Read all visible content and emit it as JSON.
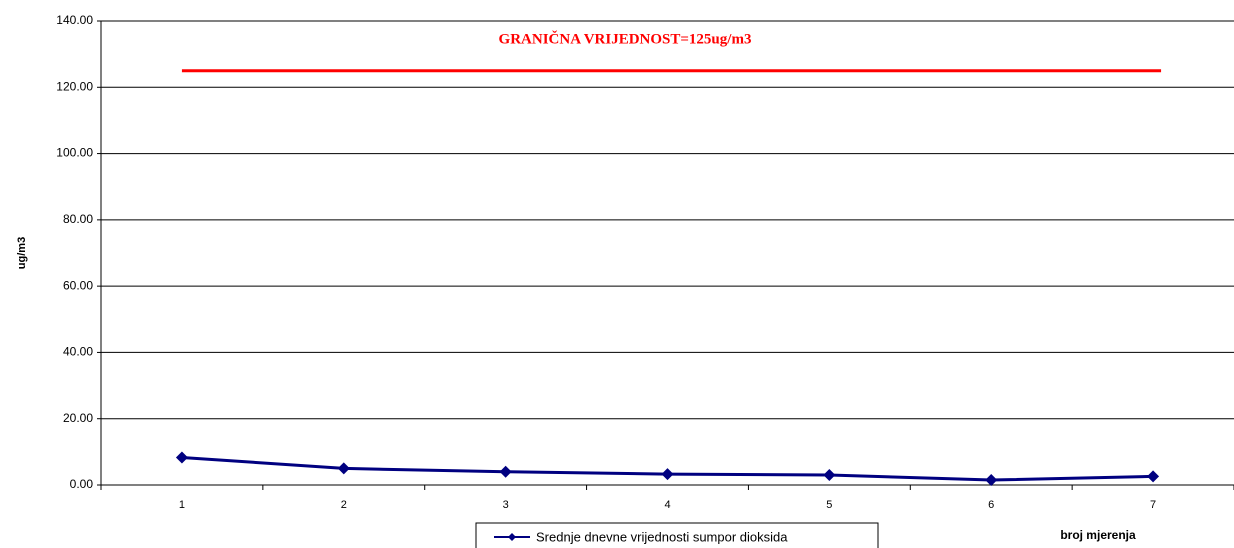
{
  "chart_data": {
    "type": "line",
    "annotation": "GRANIČNA VRIJEDNOST=125ug/m3",
    "limit": 125,
    "limit_color": "#ff0000",
    "y_label": "ug/m3",
    "x_label": "broj mjerenja",
    "categories": [
      "1",
      "2",
      "3",
      "4",
      "5",
      "6",
      "7"
    ],
    "series": [
      {
        "name": "Srednje dnevne vrijednosti sumpor dioksida",
        "color": "#000080",
        "values": [
          8.3,
          5.0,
          4.0,
          3.3,
          3.0,
          1.5,
          2.6
        ]
      }
    ],
    "ylim": [
      0,
      140
    ],
    "yticks": [
      {
        "value": 0,
        "label": "0.00"
      },
      {
        "value": 20,
        "label": "20.00"
      },
      {
        "value": 40,
        "label": "40.00"
      },
      {
        "value": 60,
        "label": "60.00"
      },
      {
        "value": 80,
        "label": "80.00"
      },
      {
        "value": 100,
        "label": "100.00"
      },
      {
        "value": 120,
        "label": "120.00"
      },
      {
        "value": 140,
        "label": "140.00"
      }
    ],
    "grid": true
  }
}
